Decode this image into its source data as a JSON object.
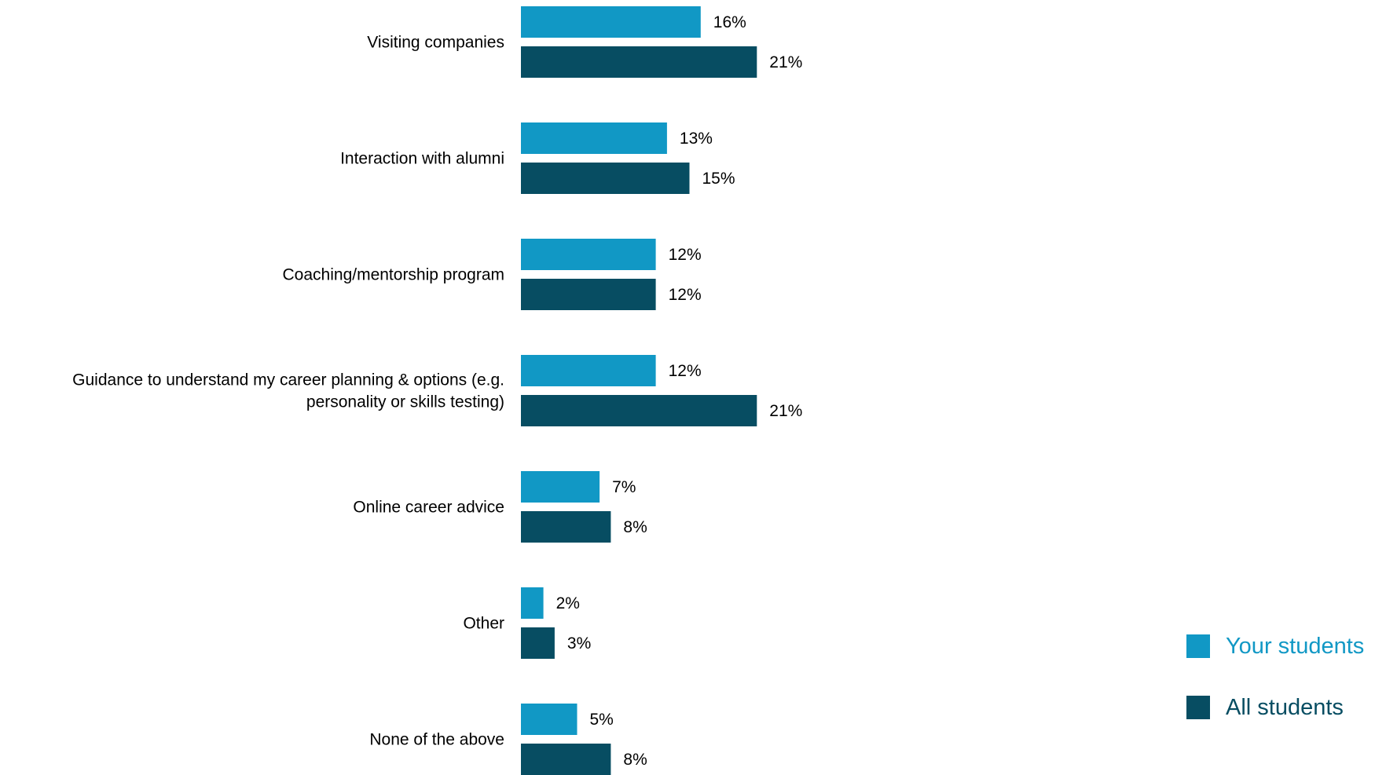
{
  "chart_data": {
    "type": "bar",
    "orientation": "horizontal",
    "categories": [
      [
        "Visiting companies"
      ],
      [
        "Interaction with alumni"
      ],
      [
        "Coaching/mentorship program"
      ],
      [
        "Guidance to understand my career planning & options (e.g.",
        "personality or skills testing)"
      ],
      [
        "Online career advice"
      ],
      [
        "Other"
      ],
      [
        "None of the above"
      ]
    ],
    "series": [
      {
        "name": "Your students",
        "color": "#1198c5",
        "values": [
          16,
          13,
          12,
          12,
          7,
          2,
          5
        ],
        "labels": [
          "16%",
          "13%",
          "12%",
          "12%",
          "7%",
          "2%",
          "5%"
        ]
      },
      {
        "name": "All students",
        "color": "#074d62",
        "values": [
          21,
          15,
          12,
          21,
          8,
          3,
          8
        ],
        "labels": [
          "21%",
          "15%",
          "12%",
          "21%",
          "8%",
          "3%",
          "8%"
        ]
      }
    ],
    "title": "",
    "xlabel": "",
    "ylabel": "",
    "xlim": [
      0,
      100
    ],
    "grid": false,
    "legend_position": "bottom-right"
  }
}
